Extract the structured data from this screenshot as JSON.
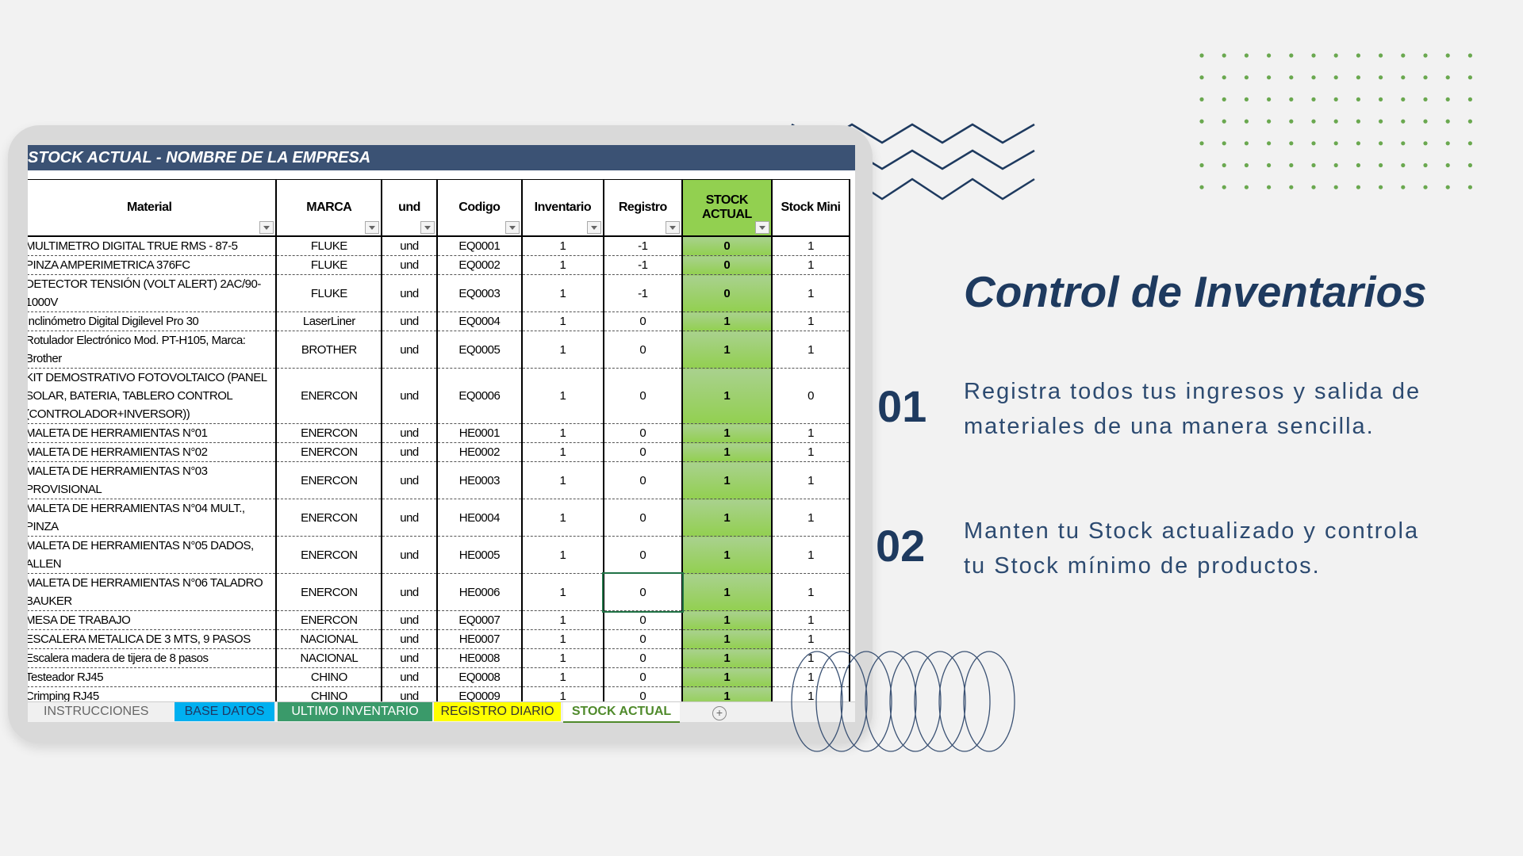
{
  "slide": {
    "title": "Control de Inventarios",
    "features": [
      {
        "number": "01",
        "text": "Registra todos tus ingresos y salida de materiales de una manera sencilla."
      },
      {
        "number": "02",
        "text": "Manten tu Stock actualizado y controla tu Stock mínimo de productos."
      }
    ]
  },
  "spreadsheet": {
    "title": "STOCK ACTUAL - NOMBRE DE LA EMPRESA",
    "headers": [
      "Material",
      "MARCA",
      "und",
      "Codigo",
      "Inventario",
      "Registro",
      "STOCK ACTUAL",
      "Stock Mini"
    ],
    "rows": [
      [
        "MULTIMETRO DIGITAL TRUE RMS - 87-5",
        "FLUKE",
        "und",
        "EQ0001",
        "1",
        "-1",
        "0",
        "1"
      ],
      [
        "PINZA AMPERIMETRICA  376FC",
        "FLUKE",
        "und",
        "EQ0002",
        "1",
        "-1",
        "0",
        "1"
      ],
      [
        "DETECTOR TENSIÓN (VOLT ALERT) 2AC/90-1000V",
        "FLUKE",
        "und",
        "EQ0003",
        "1",
        "-1",
        "0",
        "1"
      ],
      [
        "Inclinómetro Digital Digilevel Pro 30",
        "LaserLiner",
        "und",
        "EQ0004",
        "1",
        "0",
        "1",
        "1"
      ],
      [
        "Rotulador Electrónico Mod. PT-H105, Marca: Brother",
        "BROTHER",
        "und",
        "EQ0005",
        "1",
        "0",
        "1",
        "1"
      ],
      [
        "KIT DEMOSTRATIVO FOTOVOLTAICO (PANEL SOLAR, BATERIA, TABLERO CONTROL (CONTROLADOR+INVERSOR))",
        "ENERCON",
        "und",
        "EQ0006",
        "1",
        "0",
        "1",
        "0"
      ],
      [
        "MALETA DE HERRAMIENTAS N°01",
        "ENERCON",
        "und",
        "HE0001",
        "1",
        "0",
        "1",
        "1"
      ],
      [
        "MALETA DE HERRAMIENTAS N°02",
        "ENERCON",
        "und",
        "HE0002",
        "1",
        "0",
        "1",
        "1"
      ],
      [
        "MALETA DE HERRAMIENTAS N°03 PROVISIONAL",
        "ENERCON",
        "und",
        "HE0003",
        "1",
        "0",
        "1",
        "1"
      ],
      [
        "MALETA DE HERRAMIENTAS N°04 MULT., PINZA",
        "ENERCON",
        "und",
        "HE0004",
        "1",
        "0",
        "1",
        "1"
      ],
      [
        "MALETA DE HERRAMIENTAS N°05 DADOS, ALLEN",
        "ENERCON",
        "und",
        "HE0005",
        "1",
        "0",
        "1",
        "1"
      ],
      [
        "MALETA DE HERRAMIENTAS N°06 TALADRO BAUKER",
        "ENERCON",
        "und",
        "HE0006",
        "1",
        "0",
        "1",
        "1"
      ],
      [
        "MESA DE TRABAJO",
        "ENERCON",
        "und",
        "EQ0007",
        "1",
        "0",
        "1",
        "1"
      ],
      [
        "ESCALERA METALICA DE 3 MTS, 9 PASOS",
        "NACIONAL",
        "und",
        "HE0007",
        "1",
        "0",
        "1",
        "1"
      ],
      [
        "Escalera madera de tijera de 8 pasos",
        "NACIONAL",
        "und",
        "HE0008",
        "1",
        "0",
        "1",
        "1"
      ],
      [
        "Testeador RJ45",
        "CHINO",
        "und",
        "EQ0008",
        "1",
        "0",
        "1",
        "1"
      ],
      [
        "Crimping RJ45",
        "CHINO",
        "und",
        "EQ0009",
        "1",
        "0",
        "1",
        "1"
      ]
    ],
    "tabs": [
      "INSTRUCCIONES",
      "BASE DATOS",
      "ULTIMO INVENTARIO",
      "REGISTRO DIARIO",
      "STOCK ACTUAL"
    ]
  }
}
